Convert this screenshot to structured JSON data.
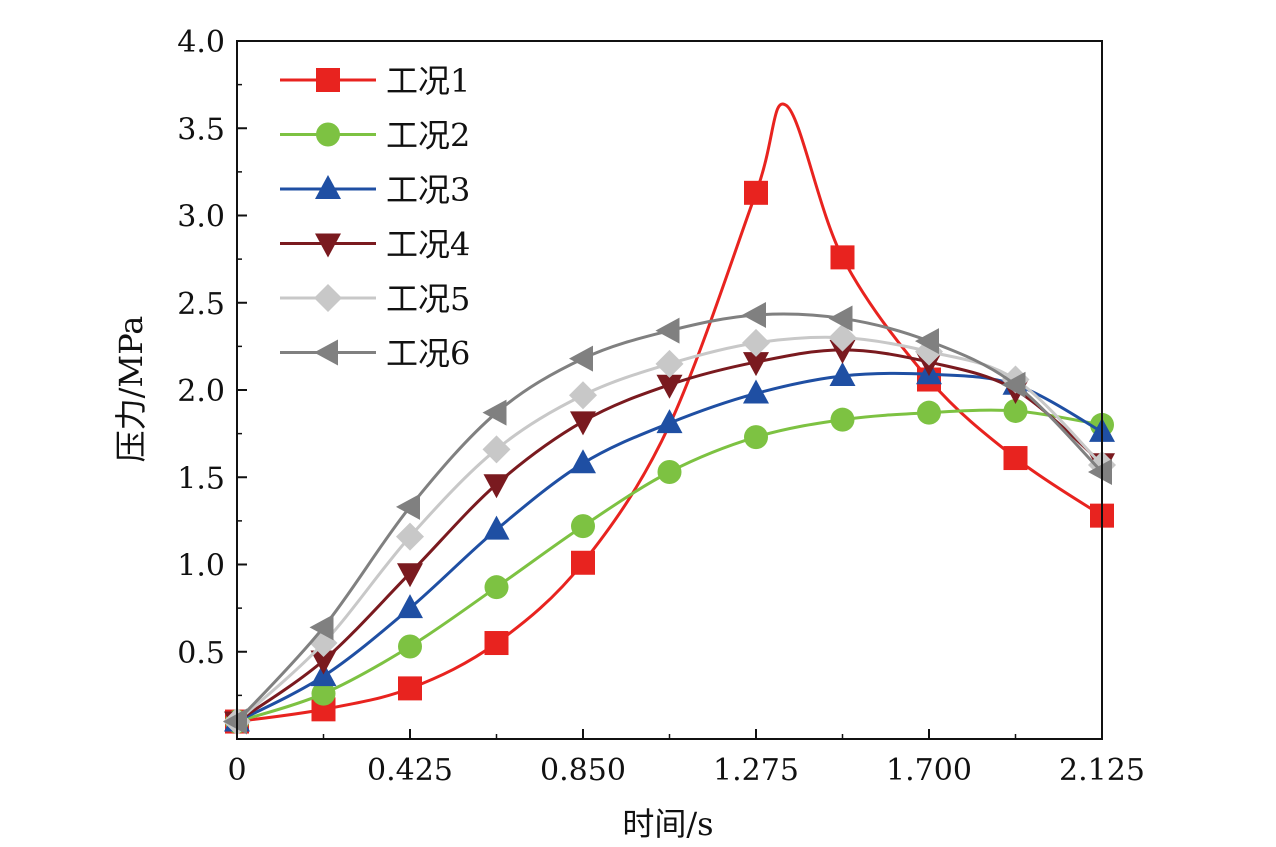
{
  "chart_data": {
    "type": "line",
    "title": "",
    "xlabel": "时间/s",
    "ylabel": "压力/MPa",
    "xlim": [
      0,
      2.125
    ],
    "ylim": [
      0,
      4.0
    ],
    "x_ticks": [
      0,
      0.425,
      0.85,
      1.275,
      1.7,
      2.125
    ],
    "x_tick_labels": [
      "0",
      "0.425",
      "0.850",
      "1.275",
      "1.700",
      "2.125"
    ],
    "y_ticks": [
      0.5,
      1.0,
      1.5,
      2.0,
      2.5,
      3.0,
      3.5,
      4.0
    ],
    "y_tick_labels": [
      "0.5",
      "1.0",
      "1.5",
      "2.0",
      "2.5",
      "3.0",
      "3.5",
      "4.0"
    ],
    "grid": false,
    "legend_position": "top-left",
    "series": [
      {
        "name": "工况1",
        "color": "#e8231f",
        "marker": "square",
        "curve": [
          [
            0,
            0.1
          ],
          [
            0.2125,
            0.17
          ],
          [
            0.425,
            0.29
          ],
          [
            0.6375,
            0.55
          ],
          [
            0.85,
            1.01
          ],
          [
            1.0625,
            1.8
          ],
          [
            1.275,
            3.13
          ],
          [
            1.35,
            3.63
          ],
          [
            1.4875,
            2.76
          ],
          [
            1.7,
            2.06
          ],
          [
            1.9125,
            1.61
          ],
          [
            2.125,
            1.28
          ]
        ],
        "points": [
          [
            0,
            0.1
          ],
          [
            0.2125,
            0.17
          ],
          [
            0.425,
            0.29
          ],
          [
            0.6375,
            0.55
          ],
          [
            0.85,
            1.01
          ],
          [
            1.275,
            3.13
          ],
          [
            1.4875,
            2.76
          ],
          [
            1.7,
            2.06
          ],
          [
            1.9125,
            1.61
          ],
          [
            2.125,
            1.28
          ]
        ]
      },
      {
        "name": "工况2",
        "color": "#7dc242",
        "marker": "circle",
        "curve": [
          [
            0,
            0.1
          ],
          [
            0.2125,
            0.26
          ],
          [
            0.425,
            0.53
          ],
          [
            0.6375,
            0.87
          ],
          [
            0.85,
            1.22
          ],
          [
            1.0625,
            1.53
          ],
          [
            1.275,
            1.73
          ],
          [
            1.4875,
            1.83
          ],
          [
            1.7,
            1.87
          ],
          [
            1.9125,
            1.88
          ],
          [
            2.125,
            1.8
          ]
        ],
        "points": [
          [
            0,
            0.1
          ],
          [
            0.2125,
            0.26
          ],
          [
            0.425,
            0.53
          ],
          [
            0.6375,
            0.87
          ],
          [
            0.85,
            1.22
          ],
          [
            1.0625,
            1.53
          ],
          [
            1.275,
            1.73
          ],
          [
            1.4875,
            1.83
          ],
          [
            1.7,
            1.87
          ],
          [
            1.9125,
            1.88
          ],
          [
            2.125,
            1.8
          ]
        ]
      },
      {
        "name": "工况3",
        "color": "#1f4fa3",
        "marker": "triangle-up",
        "curve": [
          [
            0,
            0.1
          ],
          [
            0.2125,
            0.36
          ],
          [
            0.425,
            0.75
          ],
          [
            0.6375,
            1.2
          ],
          [
            0.85,
            1.58
          ],
          [
            1.0625,
            1.81
          ],
          [
            1.275,
            1.98
          ],
          [
            1.4875,
            2.08
          ],
          [
            1.7,
            2.09
          ],
          [
            1.9125,
            2.03
          ],
          [
            2.125,
            1.76
          ]
        ],
        "points": [
          [
            0,
            0.1
          ],
          [
            0.2125,
            0.36
          ],
          [
            0.425,
            0.75
          ],
          [
            0.6375,
            1.2
          ],
          [
            0.85,
            1.58
          ],
          [
            1.0625,
            1.81
          ],
          [
            1.275,
            1.98
          ],
          [
            1.4875,
            2.08
          ],
          [
            1.7,
            2.09
          ],
          [
            1.9125,
            2.03
          ],
          [
            2.125,
            1.76
          ]
        ]
      },
      {
        "name": "工况4",
        "color": "#7a1a1f",
        "marker": "triangle-down",
        "curve": [
          [
            0,
            0.1
          ],
          [
            0.2125,
            0.45
          ],
          [
            0.425,
            0.95
          ],
          [
            0.6375,
            1.46
          ],
          [
            0.85,
            1.82
          ],
          [
            1.0625,
            2.03
          ],
          [
            1.275,
            2.16
          ],
          [
            1.4875,
            2.23
          ],
          [
            1.7,
            2.16
          ],
          [
            1.9125,
            2.0
          ],
          [
            2.125,
            1.58
          ]
        ],
        "points": [
          [
            0,
            0.1
          ],
          [
            0.2125,
            0.45
          ],
          [
            0.425,
            0.95
          ],
          [
            0.6375,
            1.46
          ],
          [
            0.85,
            1.82
          ],
          [
            1.0625,
            2.03
          ],
          [
            1.275,
            2.16
          ],
          [
            1.4875,
            2.23
          ],
          [
            1.7,
            2.16
          ],
          [
            1.9125,
            2.0
          ],
          [
            2.125,
            1.58
          ]
        ]
      },
      {
        "name": "工况5",
        "color": "#c8c8c8",
        "marker": "diamond",
        "curve": [
          [
            0,
            0.1
          ],
          [
            0.2125,
            0.55
          ],
          [
            0.425,
            1.16
          ],
          [
            0.6375,
            1.66
          ],
          [
            0.85,
            1.97
          ],
          [
            1.0625,
            2.15
          ],
          [
            1.275,
            2.27
          ],
          [
            1.4875,
            2.3
          ],
          [
            1.7,
            2.22
          ],
          [
            1.9125,
            2.06
          ],
          [
            2.125,
            1.57
          ]
        ],
        "points": [
          [
            0,
            0.1
          ],
          [
            0.2125,
            0.55
          ],
          [
            0.425,
            1.16
          ],
          [
            0.6375,
            1.66
          ],
          [
            0.85,
            1.97
          ],
          [
            1.0625,
            2.15
          ],
          [
            1.275,
            2.27
          ],
          [
            1.4875,
            2.3
          ],
          [
            1.7,
            2.22
          ],
          [
            1.9125,
            2.06
          ],
          [
            2.125,
            1.57
          ]
        ]
      },
      {
        "name": "工况6",
        "color": "#808080",
        "marker": "triangle-left",
        "curve": [
          [
            0,
            0.1
          ],
          [
            0.2125,
            0.64
          ],
          [
            0.425,
            1.33
          ],
          [
            0.6375,
            1.87
          ],
          [
            0.85,
            2.18
          ],
          [
            1.0625,
            2.34
          ],
          [
            1.275,
            2.43
          ],
          [
            1.4875,
            2.41
          ],
          [
            1.7,
            2.28
          ],
          [
            1.9125,
            2.03
          ],
          [
            2.125,
            1.53
          ]
        ],
        "points": [
          [
            0,
            0.1
          ],
          [
            0.2125,
            0.64
          ],
          [
            0.425,
            1.33
          ],
          [
            0.6375,
            1.87
          ],
          [
            0.85,
            2.18
          ],
          [
            1.0625,
            2.34
          ],
          [
            1.275,
            2.43
          ],
          [
            1.4875,
            2.41
          ],
          [
            1.7,
            2.28
          ],
          [
            1.9125,
            2.03
          ],
          [
            2.125,
            1.53
          ]
        ]
      }
    ]
  }
}
